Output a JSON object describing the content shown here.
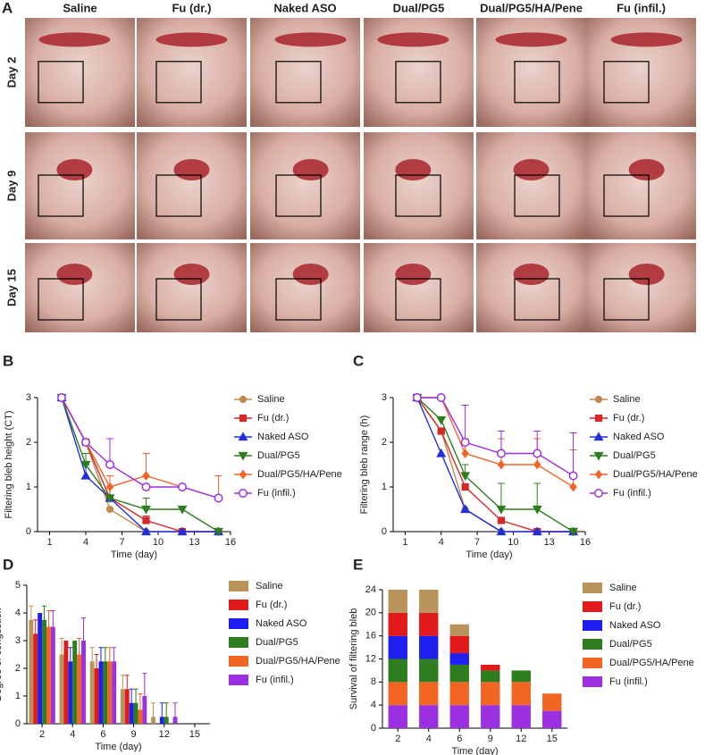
{
  "panel_a": {
    "label": "A",
    "columns": [
      "Saline",
      "Fu (dr.)",
      "Naked ASO",
      "Dual/PG5",
      "Dual/PG5/HA/Pene",
      "Fu (infil.)"
    ],
    "rows": [
      "Day 2",
      "Day 9",
      "Day 15"
    ]
  },
  "chart_data": [
    {
      "panel": "B",
      "type": "line",
      "y_label": "Filtering bleb height (CT)",
      "x_label": "Time (day)",
      "x": [
        2,
        4,
        6,
        9,
        12,
        15
      ],
      "xlim": [
        0,
        16
      ],
      "xticks": [
        1,
        4,
        7,
        10,
        13,
        16
      ],
      "ylim": [
        0,
        3
      ],
      "yticks": [
        0,
        1,
        2,
        3
      ],
      "series": [
        {
          "name": "Saline",
          "color": "#c08a4c",
          "marker": "circle",
          "values": [
            3,
            2,
            0.5,
            0,
            0,
            0
          ],
          "errors": [
            0,
            0,
            0,
            0,
            0,
            0
          ]
        },
        {
          "name": "Fu (dr.)",
          "color": "#d62728",
          "marker": "square",
          "values": [
            3,
            2,
            0.75,
            0.25,
            0,
            0
          ],
          "errors": [
            0,
            0,
            0,
            0.1,
            0,
            0
          ]
        },
        {
          "name": "Naked ASO",
          "color": "#1f2fe0",
          "marker": "triangle",
          "values": [
            3,
            1.25,
            0.75,
            0,
            0,
            0
          ],
          "errors": [
            0,
            0.25,
            0,
            0,
            0,
            0
          ]
        },
        {
          "name": "Dual/PG5",
          "color": "#2e7d1e",
          "marker": "triangle-down",
          "values": [
            3,
            1.5,
            0.75,
            0.5,
            0.5,
            0
          ],
          "errors": [
            0,
            0.25,
            0.25,
            0.25,
            0,
            0
          ]
        },
        {
          "name": "Dual/PG5/HA/Pene",
          "color": "#f0642a",
          "marker": "diamond",
          "values": [
            3,
            2,
            1,
            1.25,
            1,
            0.75
          ],
          "errors": [
            0,
            0,
            0.25,
            0.5,
            0,
            0.5
          ]
        },
        {
          "name": "Fu (infil.)",
          "color": "#9b30e0",
          "marker": "open-circle",
          "values": [
            3,
            2,
            1.5,
            1,
            1,
            0.75
          ],
          "errors": [
            0,
            0,
            0.58,
            0,
            0,
            0
          ]
        }
      ]
    },
    {
      "panel": "C",
      "type": "line",
      "y_label": "Filtering bleb range (h)",
      "x_label": "Time (day)",
      "x": [
        2,
        4,
        6,
        9,
        12,
        15
      ],
      "xlim": [
        0,
        16
      ],
      "xticks": [
        1,
        4,
        7,
        10,
        13,
        16
      ],
      "ylim": [
        0,
        3
      ],
      "yticks": [
        0,
        1,
        2,
        3
      ],
      "series": [
        {
          "name": "Saline",
          "color": "#c08a4c",
          "marker": "circle",
          "values": [
            3,
            2.25,
            0.5,
            0,
            0,
            0
          ],
          "errors": [
            0,
            0,
            0,
            0,
            0,
            0
          ]
        },
        {
          "name": "Fu (dr.)",
          "color": "#d62728",
          "marker": "square",
          "values": [
            3,
            2.25,
            1,
            0.25,
            0,
            0
          ],
          "errors": [
            0,
            0,
            0,
            0,
            0,
            0
          ]
        },
        {
          "name": "Naked ASO",
          "color": "#1f2fe0",
          "marker": "triangle",
          "values": [
            3,
            1.75,
            0.5,
            0,
            0,
            0
          ],
          "errors": [
            0,
            0,
            0,
            0,
            0,
            0
          ]
        },
        {
          "name": "Dual/PG5",
          "color": "#2e7d1e",
          "marker": "triangle-down",
          "values": [
            3,
            2.5,
            1.25,
            0.5,
            0.5,
            0
          ],
          "errors": [
            0,
            0,
            0.25,
            0.58,
            0.58,
            0
          ]
        },
        {
          "name": "Dual/PG5/HA/Pene",
          "color": "#f0642a",
          "marker": "diamond",
          "values": [
            3,
            3,
            1.75,
            1.5,
            1.5,
            1
          ],
          "errors": [
            0,
            0,
            0.33,
            0.58,
            0.58,
            0.83
          ]
        },
        {
          "name": "Fu (infil.)",
          "color": "#9b30e0",
          "marker": "open-circle",
          "values": [
            3,
            3,
            2,
            1.75,
            1.75,
            1.25
          ],
          "errors": [
            0,
            0,
            0.83,
            0.5,
            0.5,
            0.96
          ]
        }
      ]
    },
    {
      "panel": "D",
      "type": "bar",
      "y_label": "Degree of congestion",
      "x_label": "Time (day)",
      "categories": [
        "2",
        "4",
        "6",
        "9",
        "12",
        "15"
      ],
      "ylim": [
        0,
        5
      ],
      "yticks": [
        0,
        1,
        2,
        3,
        4,
        5
      ],
      "series": [
        {
          "name": "Saline",
          "color": "#b8935a",
          "values": [
            3.75,
            2.5,
            2.25,
            1.25,
            0.25,
            0
          ],
          "errors": [
            0.5,
            0.58,
            0.5,
            0.5,
            0.5,
            0
          ]
        },
        {
          "name": "Fu (dr.)",
          "color": "#e31a1c",
          "values": [
            3.25,
            3,
            2,
            1.25,
            0,
            0
          ],
          "errors": [
            0.5,
            0,
            0.5,
            0.5,
            0,
            0
          ]
        },
        {
          "name": "Naked ASO",
          "color": "#1f1ff0",
          "values": [
            4,
            2.25,
            2.25,
            0.75,
            0.25,
            0
          ],
          "errors": [
            0,
            0.5,
            0.5,
            0.5,
            0.5,
            0
          ]
        },
        {
          "name": "Dual/PG5",
          "color": "#2e7d1e",
          "values": [
            3.75,
            3,
            2.25,
            0.75,
            0.25,
            0
          ],
          "errors": [
            0.5,
            0,
            0.5,
            0.5,
            0.5,
            0
          ]
        },
        {
          "name": "Dual/PG5/HA/Pene",
          "color": "#f26522",
          "values": [
            3.5,
            2.5,
            2.25,
            0.5,
            0,
            0
          ],
          "errors": [
            0.58,
            0.58,
            0.5,
            0.58,
            0,
            0
          ]
        },
        {
          "name": "Fu (infil.)",
          "color": "#9b30e0",
          "values": [
            3.5,
            3,
            2.25,
            1,
            0.25,
            0
          ],
          "errors": [
            0.58,
            0.82,
            0.5,
            0.82,
            0.5,
            0
          ]
        }
      ]
    },
    {
      "panel": "E",
      "type": "stacked-bar",
      "y_label": "Survival of filtering bleb",
      "x_label": "Time (day)",
      "categories": [
        "2",
        "4",
        "6",
        "9",
        "12",
        "15"
      ],
      "ylim": [
        0,
        24
      ],
      "yticks": [
        0,
        4,
        8,
        12,
        16,
        20,
        24
      ],
      "series": [
        {
          "name": "Saline",
          "color": "#b8935a",
          "values": [
            4,
            4,
            2,
            0,
            0,
            0
          ]
        },
        {
          "name": "Fu (dr.)",
          "color": "#e31a1c",
          "values": [
            4,
            4,
            3,
            1,
            0,
            0
          ]
        },
        {
          "name": "Naked ASO",
          "color": "#1f1ff0",
          "values": [
            4,
            4,
            2,
            0,
            0,
            0
          ]
        },
        {
          "name": "Dual/PG5",
          "color": "#2e7d1e",
          "values": [
            4,
            4,
            3,
            2,
            2,
            0
          ]
        },
        {
          "name": "Dual/PG5/HA/Pene",
          "color": "#f26522",
          "values": [
            4,
            4,
            4,
            4,
            4,
            3
          ]
        },
        {
          "name": "Fu (infil.)",
          "color": "#9b30e0",
          "values": [
            4,
            4,
            4,
            4,
            4,
            3
          ]
        }
      ]
    }
  ]
}
